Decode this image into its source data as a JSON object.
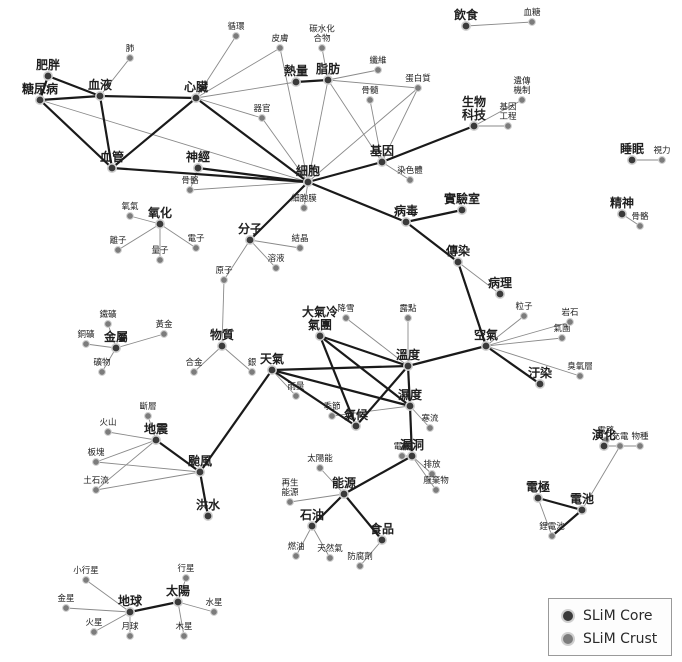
{
  "colors": {
    "core_fill": "#3a3a3a",
    "core_ring": "#d0d0d0",
    "crust_fill": "#7c7c7c",
    "core_edge": "#1a1a1a",
    "crust_edge": "#8a8a8a",
    "label": "#1f1f1f"
  },
  "legend": {
    "core": "SLiM Core",
    "crust": "SLiM Crust"
  },
  "nodes": [
    {
      "id": "diabetes",
      "label": "糖尿病",
      "type": "core"
    },
    {
      "id": "bloodvessel",
      "label": "血管",
      "type": "core"
    },
    {
      "id": "blood",
      "label": "血液",
      "type": "core"
    },
    {
      "id": "obesity",
      "label": "肥胖",
      "type": "core"
    },
    {
      "id": "heart",
      "label": "心臟",
      "type": "core"
    },
    {
      "id": "lungs",
      "label": "肺",
      "type": "crust"
    },
    {
      "id": "fat",
      "label": "脂肪",
      "type": "core"
    },
    {
      "id": "energy",
      "label": "熱量",
      "type": "core"
    },
    {
      "id": "carb",
      "label": "碳水化合物",
      "type": "crust"
    },
    {
      "id": "fiber",
      "label": "纖維",
      "type": "crust"
    },
    {
      "id": "marrow",
      "label": "骨髓",
      "type": "crust"
    },
    {
      "id": "protein",
      "label": "蛋白質",
      "type": "crust"
    },
    {
      "id": "bio",
      "label": "生物科技",
      "type": "core"
    },
    {
      "id": "tissue",
      "label": "細胞",
      "type": "core"
    },
    {
      "id": "gene",
      "label": "基因",
      "type": "core"
    },
    {
      "id": "nerve",
      "label": "神經",
      "type": "core"
    },
    {
      "id": "bone",
      "label": "骨骼",
      "type": "crust"
    },
    {
      "id": "organ",
      "label": "器官",
      "type": "crust"
    },
    {
      "id": "skin",
      "label": "皮膚",
      "type": "crust"
    },
    {
      "id": "cycle",
      "label": "循環",
      "type": "crust"
    },
    {
      "id": "dna",
      "label": "染色體",
      "type": "crust"
    },
    {
      "id": "genetech",
      "label": "基因工程",
      "type": "crust"
    },
    {
      "id": "engtech",
      "label": "遺傳機制",
      "type": "crust"
    },
    {
      "id": "virus",
      "label": "病毒",
      "type": "core"
    },
    {
      "id": "lab",
      "label": "實驗室",
      "type": "core"
    },
    {
      "id": "oxidation",
      "label": "氧化",
      "type": "core"
    },
    {
      "id": "oxygen",
      "label": "氧氣",
      "type": "crust"
    },
    {
      "id": "ions",
      "label": "離子",
      "type": "crust"
    },
    {
      "id": "quantum",
      "label": "量子",
      "type": "crust"
    },
    {
      "id": "electron",
      "label": "電子",
      "type": "crust"
    },
    {
      "id": "molecule",
      "label": "分子",
      "type": "core"
    },
    {
      "id": "solution",
      "label": "溶液",
      "type": "crust"
    },
    {
      "id": "crystal",
      "label": "結晶",
      "type": "crust"
    },
    {
      "id": "atom",
      "label": "原子",
      "type": "crust"
    },
    {
      "id": "cell",
      "label": "細胞膜",
      "type": "crust"
    },
    {
      "id": "infection",
      "label": "傳染",
      "type": "core"
    },
    {
      "id": "pathology",
      "label": "病理",
      "type": "core"
    },
    {
      "id": "particle",
      "label": "粒子",
      "type": "crust"
    },
    {
      "id": "airmass",
      "label": "氣團",
      "type": "crust"
    },
    {
      "id": "ozone",
      "label": "臭氧層",
      "type": "crust"
    },
    {
      "id": "air",
      "label": "空氣",
      "type": "core"
    },
    {
      "id": "pollute",
      "label": "汙染",
      "type": "core"
    },
    {
      "id": "atmos",
      "label": "大氣冷氣團",
      "type": "core"
    },
    {
      "id": "temp",
      "label": "溫度",
      "type": "core"
    },
    {
      "id": "humidity",
      "label": "濕度",
      "type": "core"
    },
    {
      "id": "weather",
      "label": "天氣",
      "type": "core"
    },
    {
      "id": "snow",
      "label": "降雪",
      "type": "crust"
    },
    {
      "id": "dew",
      "label": "露點",
      "type": "crust"
    },
    {
      "id": "frost",
      "label": "寒流",
      "type": "crust"
    },
    {
      "id": "climate",
      "label": "氣候",
      "type": "core"
    },
    {
      "id": "seasons",
      "label": "季節",
      "type": "crust"
    },
    {
      "id": "rainfall",
      "label": "雨量",
      "type": "crust"
    },
    {
      "id": "metal",
      "label": "金屬",
      "type": "core"
    },
    {
      "id": "iron",
      "label": "鐵礦",
      "type": "crust"
    },
    {
      "id": "copper",
      "label": "銅礦",
      "type": "crust"
    },
    {
      "id": "ore",
      "label": "礦物",
      "type": "crust"
    },
    {
      "id": "gold",
      "label": "黃金",
      "type": "crust"
    },
    {
      "id": "material",
      "label": "物質",
      "type": "core"
    },
    {
      "id": "alloy",
      "label": "合金",
      "type": "crust"
    },
    {
      "id": "silver",
      "label": "銀",
      "type": "crust"
    },
    {
      "id": "earthquake",
      "label": "地震",
      "type": "core"
    },
    {
      "id": "volcano",
      "label": "火山",
      "type": "crust"
    },
    {
      "id": "plate",
      "label": "板塊",
      "type": "crust"
    },
    {
      "id": "landslide",
      "label": "土石流",
      "type": "crust"
    },
    {
      "id": "typhoon",
      "label": "颱風",
      "type": "core"
    },
    {
      "id": "flood",
      "label": "洪水",
      "type": "core"
    },
    {
      "id": "fault",
      "label": "斷層",
      "type": "crust"
    },
    {
      "id": "energyres",
      "label": "能源",
      "type": "core"
    },
    {
      "id": "solar",
      "label": "太陽能",
      "type": "crust"
    },
    {
      "id": "renew",
      "label": "再生能源",
      "type": "crust"
    },
    {
      "id": "oil",
      "label": "石油",
      "type": "core"
    },
    {
      "id": "fuel",
      "label": "燃油",
      "type": "crust"
    },
    {
      "id": "naturalgas",
      "label": "天然氣",
      "type": "crust"
    },
    {
      "id": "food",
      "label": "食品",
      "type": "core"
    },
    {
      "id": "preserv",
      "label": "防腐劑",
      "type": "crust"
    },
    {
      "id": "emission",
      "label": "排放",
      "type": "crust"
    },
    {
      "id": "power",
      "label": "電廠",
      "type": "crust"
    },
    {
      "id": "battery",
      "label": "電池",
      "type": "core"
    },
    {
      "id": "charge",
      "label": "充電",
      "type": "crust"
    },
    {
      "id": "electric",
      "label": "電極",
      "type": "core"
    },
    {
      "id": "lithium",
      "label": "鋰電池",
      "type": "crust"
    },
    {
      "id": "circuit",
      "label": "電路",
      "type": "crust"
    },
    {
      "id": "earth",
      "label": "地球",
      "type": "core"
    },
    {
      "id": "sun",
      "label": "太陽",
      "type": "core"
    },
    {
      "id": "planet",
      "label": "行星",
      "type": "crust"
    },
    {
      "id": "asteroid",
      "label": "小行星",
      "type": "crust"
    },
    {
      "id": "mercury",
      "label": "水星",
      "type": "crust"
    },
    {
      "id": "venus",
      "label": "金星",
      "type": "crust"
    },
    {
      "id": "mars",
      "label": "火星",
      "type": "crust"
    },
    {
      "id": "moon",
      "label": "月球",
      "type": "crust"
    },
    {
      "id": "jupiter",
      "label": "木星",
      "type": "crust"
    },
    {
      "id": "leak",
      "label": "漏洞",
      "type": "core"
    },
    {
      "id": "waste",
      "label": "廢棄物",
      "type": "crust"
    },
    {
      "id": "diet",
      "label": "飲食",
      "type": "core"
    },
    {
      "id": "sugar",
      "label": "血糖",
      "type": "crust"
    },
    {
      "id": "sleep",
      "label": "睡眠",
      "type": "core"
    },
    {
      "id": "vision",
      "label": "視力",
      "type": "crust"
    },
    {
      "id": "mind",
      "label": "精神",
      "type": "core"
    },
    {
      "id": "bone2",
      "label": "骨骼",
      "type": "crust"
    },
    {
      "id": "evolution",
      "label": "演化",
      "type": "core"
    },
    {
      "id": "species",
      "label": "物種",
      "type": "crust"
    },
    {
      "id": "rock",
      "label": "岩石",
      "type": "crust"
    }
  ]
}
